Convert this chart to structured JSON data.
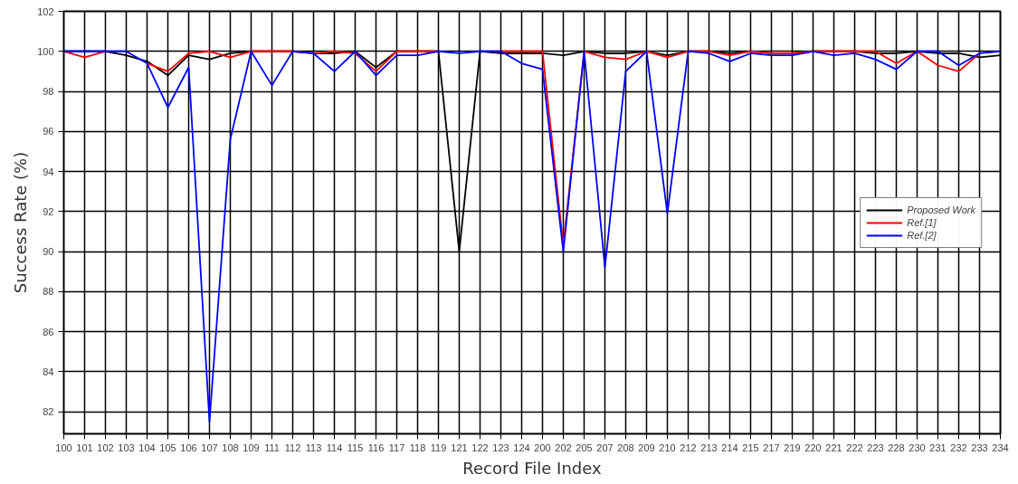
{
  "chart_data": {
    "type": "line",
    "xlabel": "Record File Index",
    "ylabel": "Success Rate (%)",
    "categories": [
      "100",
      "101",
      "102",
      "103",
      "104",
      "105",
      "106",
      "107",
      "108",
      "109",
      "111",
      "112",
      "113",
      "114",
      "115",
      "116",
      "117",
      "118",
      "119",
      "121",
      "122",
      "123",
      "124",
      "200",
      "202",
      "205",
      "207",
      "208",
      "209",
      "210",
      "212",
      "213",
      "214",
      "215",
      "217",
      "219",
      "220",
      "221",
      "222",
      "223",
      "228",
      "230",
      "231",
      "232",
      "233",
      "234"
    ],
    "series": [
      {
        "name": "Proposed Work",
        "color": "#000000",
        "values": [
          100,
          100,
          100,
          99.8,
          99.5,
          98.8,
          99.8,
          99.6,
          99.9,
          100,
          100,
          100,
          99.9,
          99.9,
          100,
          99.2,
          100,
          100,
          100,
          90.0,
          100,
          99.9,
          99.9,
          99.9,
          99.8,
          100,
          99.9,
          99.9,
          100,
          99.8,
          100,
          100,
          99.9,
          100,
          99.9,
          99.9,
          100,
          100,
          100,
          99.9,
          99.9,
          100,
          99.9,
          99.9,
          99.7,
          99.8
        ]
      },
      {
        "name": "Ref.[1]",
        "color": "#ff0000",
        "values": [
          100,
          99.7,
          100,
          null,
          99.4,
          99.0,
          99.9,
          100,
          99.7,
          100,
          100,
          100,
          99.9,
          100,
          99.9,
          99.0,
          100,
          100,
          100,
          null,
          null,
          100,
          100,
          100,
          90.3,
          100,
          99.7,
          99.6,
          100,
          99.7,
          100,
          100,
          99.8,
          100,
          99.9,
          99.9,
          100,
          100,
          100,
          100,
          99.4,
          100,
          99.3,
          99.0,
          99.9,
          null
        ]
      },
      {
        "name": "Ref.[2]",
        "color": "#0000ff",
        "values": [
          100,
          100,
          100,
          100,
          99.4,
          97.2,
          99.2,
          81.5,
          95.6,
          100,
          98.3,
          100,
          99.9,
          99.0,
          100,
          98.8,
          99.8,
          99.8,
          100,
          99.9,
          100,
          100,
          99.4,
          99.1,
          90.0,
          100,
          89.2,
          99.0,
          100,
          91.9,
          100,
          99.9,
          99.5,
          99.9,
          99.8,
          99.8,
          100,
          99.8,
          99.9,
          99.6,
          99.1,
          100,
          100,
          99.3,
          99.9,
          100
        ]
      }
    ],
    "ylim": [
      80.9,
      102
    ],
    "yticks": [
      82,
      84,
      86,
      88,
      90,
      92,
      94,
      96,
      98,
      100,
      102
    ],
    "grid": true,
    "legend": "right",
    "marker": "none",
    "line_style": "solid"
  }
}
